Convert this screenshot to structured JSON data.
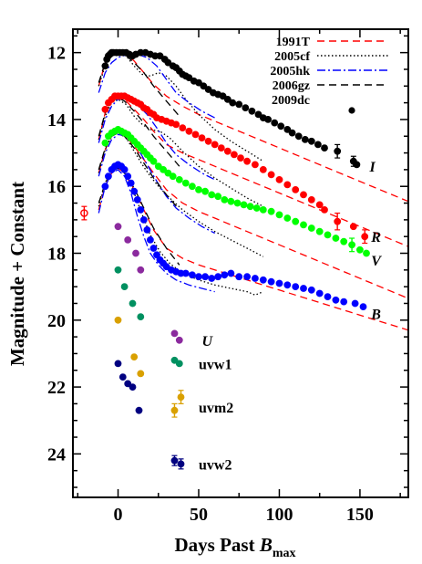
{
  "chart_data": {
    "type": "scatter",
    "xlabel": "Days Past B_max",
    "ylabel": "Magnitude + Constant",
    "xlabel_main": "Days Past ",
    "xlabel_italic": "B",
    "xlabel_sub": "max",
    "xlim": [
      -28,
      180
    ],
    "ylim": [
      25.3,
      11.3
    ],
    "y_inverted": true,
    "xticks": [
      0,
      50,
      100,
      150
    ],
    "yticks": [
      12,
      14,
      16,
      18,
      20,
      22,
      24
    ],
    "legend": {
      "position": "top-right",
      "entries": [
        {
          "label": "1991T",
          "color": "#ff0000",
          "style": "dashed"
        },
        {
          "label": "2005cf",
          "color": "#000000",
          "style": "dotted"
        },
        {
          "label": "2005hk",
          "color": "#0000ff",
          "style": "dashdot"
        },
        {
          "label": "2006gz",
          "color": "#000000",
          "style": "dashed"
        },
        {
          "label": "2009dc",
          "color": "#000000",
          "style": "marker"
        }
      ]
    },
    "band_labels": [
      {
        "text": "I",
        "x": 156,
        "y": 15.4
      },
      {
        "text": "R",
        "x": 157,
        "y": 17.5
      },
      {
        "text": "V",
        "x": 157,
        "y": 18.2
      },
      {
        "text": "B",
        "x": 157,
        "y": 19.8
      },
      {
        "text": "U",
        "x": 52,
        "y": 20.6
      }
    ],
    "uv_labels": [
      {
        "text": "uvw1",
        "x": 50,
        "y": 21.3
      },
      {
        "text": "uvm2",
        "x": 50,
        "y": 22.6
      },
      {
        "text": "uvw2",
        "x": 50,
        "y": 24.3
      }
    ],
    "series": [
      {
        "name": "I",
        "color": "#000000",
        "x": [
          -8,
          -7,
          -6,
          -5,
          -4,
          -3,
          -1,
          1,
          3,
          5,
          7,
          9,
          11,
          14,
          17,
          20,
          23,
          26,
          29,
          31,
          34,
          36,
          38,
          40,
          42,
          44,
          47,
          50,
          53,
          56,
          59,
          62,
          65,
          68,
          71,
          75,
          79,
          83,
          87,
          90,
          93,
          97,
          101,
          105,
          108,
          112,
          116,
          120,
          124,
          128,
          136,
          146,
          148
        ],
        "y": [
          12.4,
          12.2,
          12.1,
          12.05,
          12.0,
          12.0,
          12.0,
          12.0,
          12.0,
          12.0,
          12.05,
          12.1,
          12.05,
          12.0,
          12.0,
          12.05,
          12.1,
          12.1,
          12.2,
          12.3,
          12.4,
          12.45,
          12.55,
          12.65,
          12.7,
          12.75,
          12.85,
          12.9,
          13.0,
          13.1,
          13.2,
          13.25,
          13.3,
          13.4,
          13.5,
          13.55,
          13.65,
          13.75,
          13.85,
          13.95,
          14.0,
          14.1,
          14.2,
          14.3,
          14.4,
          14.5,
          14.6,
          14.65,
          14.75,
          14.85,
          14.95,
          15.25,
          15.35
        ]
      },
      {
        "name": "R",
        "color": "#ff0000",
        "x": [
          -8,
          -6,
          -4,
          -2,
          0,
          2,
          4,
          6,
          8,
          10,
          12,
          14,
          16,
          18,
          20,
          22,
          24,
          27,
          30,
          33,
          36,
          40,
          44,
          48,
          52,
          56,
          60,
          64,
          68,
          72,
          76,
          80,
          85,
          90,
          95,
          100,
          105,
          110,
          115,
          120,
          125,
          128,
          136,
          146,
          153
        ],
        "y": [
          13.7,
          13.5,
          13.4,
          13.3,
          13.3,
          13.3,
          13.3,
          13.35,
          13.4,
          13.45,
          13.5,
          13.55,
          13.65,
          13.7,
          13.8,
          13.85,
          13.95,
          14.0,
          14.05,
          14.1,
          14.15,
          14.25,
          14.35,
          14.45,
          14.55,
          14.65,
          14.75,
          14.85,
          14.95,
          15.05,
          15.15,
          15.25,
          15.35,
          15.5,
          15.65,
          15.8,
          15.95,
          16.1,
          16.25,
          16.4,
          16.55,
          16.7,
          17.05,
          17.2,
          17.5
        ]
      },
      {
        "name": "V",
        "color": "#00ff00",
        "x": [
          -8,
          -6,
          -4,
          -2,
          0,
          2,
          4,
          6,
          8,
          10,
          12,
          14,
          16,
          18,
          20,
          22,
          25,
          28,
          31,
          34,
          38,
          42,
          46,
          50,
          54,
          58,
          62,
          66,
          70,
          74,
          78,
          82,
          86,
          90,
          95,
          100,
          105,
          110,
          115,
          120,
          125,
          130,
          135,
          140,
          145,
          150,
          154
        ],
        "y": [
          14.7,
          14.5,
          14.4,
          14.35,
          14.3,
          14.35,
          14.4,
          14.45,
          14.55,
          14.65,
          14.75,
          14.85,
          14.95,
          15.05,
          15.15,
          15.25,
          15.4,
          15.5,
          15.6,
          15.7,
          15.8,
          15.9,
          16.0,
          16.1,
          16.15,
          16.25,
          16.3,
          16.4,
          16.45,
          16.5,
          16.55,
          16.6,
          16.65,
          16.7,
          16.75,
          16.85,
          16.95,
          17.05,
          17.15,
          17.25,
          17.35,
          17.45,
          17.55,
          17.65,
          17.75,
          17.9,
          18.0
        ]
      },
      {
        "name": "B",
        "color": "#0000ff",
        "x": [
          -8,
          -6,
          -4,
          -2,
          0,
          2,
          4,
          6,
          8,
          10,
          12,
          14,
          16,
          18,
          20,
          22,
          24,
          26,
          28,
          30,
          33,
          36,
          39,
          42,
          46,
          50,
          54,
          58,
          62,
          66,
          70,
          75,
          80,
          85,
          90,
          95,
          100,
          105,
          110,
          115,
          120,
          125,
          130,
          135,
          140,
          147,
          152
        ],
        "y": [
          16.0,
          15.7,
          15.5,
          15.4,
          15.35,
          15.4,
          15.5,
          15.7,
          15.9,
          16.15,
          16.4,
          16.7,
          17.0,
          17.3,
          17.6,
          17.85,
          18.05,
          18.2,
          18.3,
          18.4,
          18.5,
          18.55,
          18.6,
          18.6,
          18.65,
          18.7,
          18.7,
          18.75,
          18.7,
          18.65,
          18.6,
          18.7,
          18.7,
          18.75,
          18.8,
          18.85,
          18.9,
          18.95,
          19.0,
          19.05,
          19.1,
          19.2,
          19.3,
          19.4,
          19.45,
          19.5,
          19.6
        ]
      },
      {
        "name": "U",
        "color": "#8b2a9e",
        "x": [
          0,
          6,
          11,
          14,
          35,
          38
        ],
        "y": [
          17.2,
          17.6,
          18.0,
          18.5,
          20.4,
          20.6
        ]
      },
      {
        "name": "uvw1",
        "color": "#009060",
        "x": [
          0,
          4,
          9,
          14,
          35,
          38
        ],
        "y": [
          18.5,
          19.0,
          19.5,
          19.9,
          21.2,
          21.3
        ]
      },
      {
        "name": "uvm2",
        "color": "#d9a000",
        "x": [
          0,
          10,
          14,
          35,
          39
        ],
        "y": [
          20.0,
          21.1,
          21.6,
          22.7,
          22.3
        ]
      },
      {
        "name": "uvw2",
        "color": "#000080",
        "x": [
          0,
          3,
          6,
          9,
          13,
          35,
          39
        ],
        "y": [
          21.3,
          21.7,
          21.9,
          22.0,
          22.7,
          24.2,
          24.3
        ]
      },
      {
        "name": "early point",
        "color": "#ff0000",
        "hollow": true,
        "x": [
          -21
        ],
        "y": [
          16.8
        ]
      }
    ],
    "templates": [
      {
        "name": "1991T I",
        "color": "#ff0000",
        "style": "dashed",
        "x": [
          -12,
          -8,
          -4,
          0,
          4,
          10,
          16,
          22,
          30,
          40,
          50,
          60,
          70,
          80,
          100,
          130,
          160,
          180
        ],
        "y": [
          13.0,
          12.3,
          12.0,
          11.95,
          12.0,
          12.25,
          12.6,
          12.95,
          13.3,
          13.6,
          13.85,
          14.05,
          14.25,
          14.45,
          14.85,
          15.45,
          16.05,
          16.45
        ]
      },
      {
        "name": "1991T R",
        "color": "#ff0000",
        "style": "dashed",
        "x": [
          -12,
          -8,
          -4,
          0,
          4,
          10,
          16,
          22,
          30,
          40,
          50,
          60,
          70,
          80,
          100,
          130,
          160,
          180
        ],
        "y": [
          14.6,
          13.8,
          13.4,
          13.3,
          13.4,
          13.7,
          14.0,
          14.35,
          14.75,
          15.0,
          15.2,
          15.4,
          15.6,
          15.8,
          16.2,
          16.8,
          17.4,
          17.8
        ]
      },
      {
        "name": "1991T V",
        "color": "#ff0000",
        "style": "dashed",
        "x": [
          -12,
          -8,
          -4,
          0,
          4,
          10,
          16,
          22,
          30,
          40,
          50,
          60,
          70,
          80,
          100,
          130,
          160,
          180
        ],
        "y": [
          15.6,
          14.9,
          14.5,
          14.35,
          14.45,
          14.8,
          15.2,
          15.6,
          16.1,
          16.5,
          16.75,
          16.95,
          17.15,
          17.35,
          17.75,
          18.35,
          18.95,
          19.35
        ]
      },
      {
        "name": "1991T B",
        "color": "#ff0000",
        "style": "dashed",
        "x": [
          -12,
          -8,
          -4,
          0,
          4,
          10,
          16,
          22,
          30,
          40,
          50,
          60,
          70,
          80,
          100,
          130,
          160,
          180
        ],
        "y": [
          16.7,
          16.0,
          15.6,
          15.45,
          15.6,
          16.1,
          16.7,
          17.3,
          17.85,
          18.15,
          18.35,
          18.5,
          18.65,
          18.8,
          19.1,
          19.55,
          20.0,
          20.3
        ]
      },
      {
        "name": "2005cf I",
        "color": "#000000",
        "style": "dotted",
        "x": [
          -12,
          -8,
          -4,
          0,
          5,
          10,
          15,
          20,
          25,
          30,
          36,
          42,
          50,
          60,
          70,
          80,
          90
        ],
        "y": [
          13.0,
          12.4,
          12.1,
          12.0,
          12.1,
          12.4,
          12.65,
          12.7,
          12.6,
          12.7,
          13.0,
          13.4,
          13.85,
          14.3,
          14.65,
          14.95,
          15.25
        ]
      },
      {
        "name": "2005cf R",
        "color": "#000000",
        "style": "dotted",
        "x": [
          -12,
          -8,
          -4,
          0,
          5,
          10,
          15,
          20,
          26,
          32,
          40,
          50,
          60,
          70,
          80,
          90
        ],
        "y": [
          14.6,
          13.9,
          13.5,
          13.4,
          13.55,
          13.9,
          14.15,
          14.3,
          14.35,
          14.55,
          14.95,
          15.4,
          15.75,
          16.05,
          16.35,
          16.6
        ]
      },
      {
        "name": "2005cf V",
        "color": "#000000",
        "style": "dotted",
        "x": [
          -12,
          -8,
          -4,
          0,
          5,
          10,
          15,
          20,
          26,
          32,
          40,
          50,
          60,
          70,
          80,
          90
        ],
        "y": [
          15.6,
          14.9,
          14.5,
          14.4,
          14.55,
          14.95,
          15.35,
          15.7,
          16.05,
          16.35,
          16.7,
          17.05,
          17.35,
          17.6,
          17.85,
          18.1
        ]
      },
      {
        "name": "2005cf B",
        "color": "#000000",
        "style": "dotted",
        "x": [
          -12,
          -8,
          -4,
          0,
          5,
          10,
          15,
          20,
          26,
          32,
          40,
          50,
          60,
          70,
          80,
          85,
          90
        ],
        "y": [
          16.6,
          15.9,
          15.5,
          15.4,
          15.6,
          16.2,
          16.85,
          17.45,
          17.95,
          18.3,
          18.6,
          18.8,
          18.95,
          19.05,
          19.15,
          19.25,
          19.15
        ]
      },
      {
        "name": "2005hk I",
        "color": "#0000ff",
        "style": "dashdot",
        "x": [
          -12,
          -8,
          -4,
          0,
          6,
          12,
          18,
          24,
          30,
          36,
          44,
          52,
          60
        ],
        "y": [
          13.2,
          12.6,
          12.3,
          12.15,
          12.05,
          12.05,
          12.15,
          12.4,
          12.8,
          13.2,
          13.5,
          13.75,
          13.95
        ]
      },
      {
        "name": "2005hk R",
        "color": "#0000ff",
        "style": "dashdot",
        "x": [
          -12,
          -8,
          -4,
          0,
          6,
          12,
          18,
          24,
          30,
          36,
          44,
          52,
          60
        ],
        "y": [
          14.7,
          14.0,
          13.6,
          13.4,
          13.35,
          13.55,
          13.85,
          14.25,
          14.7,
          15.05,
          15.35,
          15.6,
          15.8
        ]
      },
      {
        "name": "2005hk V",
        "color": "#0000ff",
        "style": "dashdot",
        "x": [
          -12,
          -8,
          -4,
          0,
          6,
          12,
          18,
          24,
          30,
          36,
          44,
          52,
          60
        ],
        "y": [
          15.7,
          15.0,
          14.6,
          14.45,
          14.5,
          14.85,
          15.35,
          15.85,
          16.3,
          16.65,
          16.95,
          17.2,
          17.4
        ]
      },
      {
        "name": "2005hk B",
        "color": "#0000ff",
        "style": "dashdot",
        "x": [
          -12,
          -8,
          -4,
          0,
          4,
          8,
          12,
          16,
          20,
          25,
          30,
          36,
          44,
          52,
          60
        ],
        "y": [
          16.8,
          16.0,
          15.6,
          15.5,
          15.7,
          16.2,
          16.9,
          17.5,
          18.0,
          18.35,
          18.6,
          18.8,
          18.95,
          19.05,
          19.15
        ]
      },
      {
        "name": "2006gz I",
        "color": "#000000",
        "style": "dashed",
        "x": [
          -12,
          -8,
          -4,
          0,
          4,
          10,
          16,
          22,
          30,
          38
        ],
        "y": [
          12.9,
          12.3,
          12.05,
          12.0,
          12.05,
          12.3,
          12.6,
          13.0,
          13.45,
          13.9
        ]
      },
      {
        "name": "2006gz R",
        "color": "#000000",
        "style": "dashed",
        "x": [
          -12,
          -8,
          -4,
          0,
          4,
          10,
          16,
          22,
          30,
          38
        ],
        "y": [
          14.5,
          13.8,
          13.45,
          13.35,
          13.45,
          13.75,
          14.1,
          14.5,
          14.95,
          15.4
        ]
      },
      {
        "name": "2006gz V",
        "color": "#000000",
        "style": "dashed",
        "x": [
          -12,
          -8,
          -4,
          0,
          4,
          10,
          16,
          22,
          30,
          38
        ],
        "y": [
          15.5,
          14.85,
          14.5,
          14.4,
          14.5,
          14.85,
          15.3,
          15.75,
          16.25,
          16.7
        ]
      },
      {
        "name": "2006gz B",
        "color": "#000000",
        "style": "dashed",
        "x": [
          -12,
          -8,
          -4,
          0,
          4,
          10,
          16,
          22,
          30,
          38
        ],
        "y": [
          16.5,
          15.9,
          15.55,
          15.45,
          15.6,
          16.05,
          16.65,
          17.25,
          17.85,
          18.35
        ]
      }
    ],
    "error_bars": [
      {
        "x": 136,
        "y": 14.95,
        "err": 0.2,
        "color": "#000000"
      },
      {
        "x": 146,
        "y": 15.25,
        "err": 0.15,
        "color": "#000000"
      },
      {
        "x": 136,
        "y": 17.05,
        "err": 0.25,
        "color": "#ff0000"
      },
      {
        "x": 153,
        "y": 17.5,
        "err": 0.2,
        "color": "#ff0000"
      },
      {
        "x": 145,
        "y": 17.75,
        "err": 0.2,
        "color": "#00ff00"
      },
      {
        "x": -21,
        "y": 16.8,
        "err": 0.2,
        "color": "#ff0000"
      },
      {
        "x": 35,
        "y": 22.7,
        "err": 0.2,
        "color": "#d9a000"
      },
      {
        "x": 39,
        "y": 22.3,
        "err": 0.2,
        "color": "#d9a000"
      },
      {
        "x": 35,
        "y": 24.2,
        "err": 0.15,
        "color": "#000080"
      },
      {
        "x": 39,
        "y": 24.3,
        "err": 0.15,
        "color": "#000080"
      }
    ]
  }
}
